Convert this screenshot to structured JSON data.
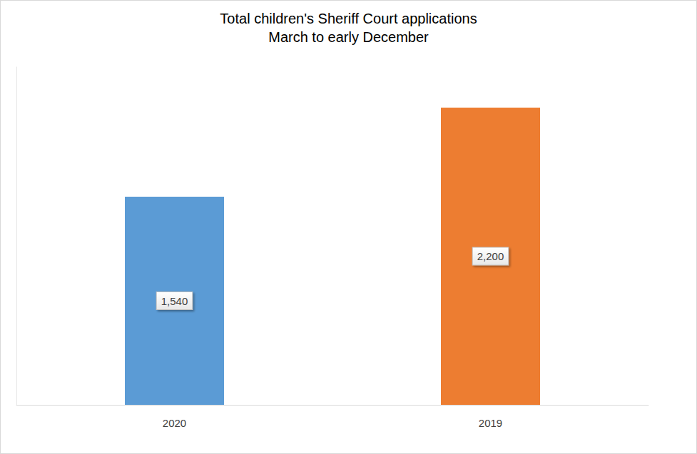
{
  "chart_data": {
    "type": "bar",
    "title": "Total children's Sheriff Court applications",
    "subtitle": "March to early December",
    "categories": [
      "2020",
      "2019"
    ],
    "values": [
      1540,
      2200
    ],
    "value_labels": [
      "1,540",
      "2,200"
    ],
    "colors": [
      "#5b9bd5",
      "#ed7d31"
    ],
    "ylim": [
      0,
      2500
    ],
    "grid": false,
    "data_labels": true,
    "tick_labels": "x"
  }
}
